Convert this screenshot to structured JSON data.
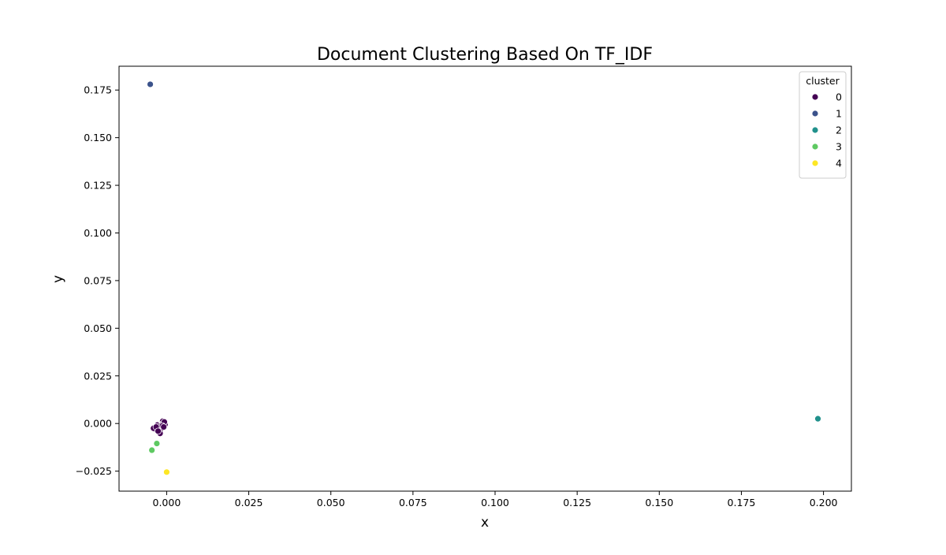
{
  "chart_data": {
    "type": "scatter",
    "title": "Document Clustering Based On TF_IDF",
    "xlabel": "x",
    "ylabel": "y",
    "xlim": [
      -0.0145,
      0.2085
    ],
    "ylim": [
      -0.0355,
      0.1875
    ],
    "x_ticks": [
      0.0,
      0.025,
      0.05,
      0.075,
      0.1,
      0.125,
      0.15,
      0.175,
      0.2
    ],
    "x_tick_labels": [
      "0.000",
      "0.025",
      "0.050",
      "0.075",
      "0.100",
      "0.125",
      "0.150",
      "0.175",
      "0.200"
    ],
    "y_ticks": [
      -0.025,
      0.0,
      0.025,
      0.05,
      0.075,
      0.1,
      0.125,
      0.15,
      0.175
    ],
    "y_tick_labels": [
      "−0.025",
      "0.000",
      "0.025",
      "0.050",
      "0.075",
      "0.100",
      "0.125",
      "0.150",
      "0.175"
    ],
    "grid": false,
    "legend": {
      "title": "cluster",
      "position": "top-right",
      "entries": [
        {
          "label": "0",
          "color": "#440154"
        },
        {
          "label": "1",
          "color": "#3b528b"
        },
        {
          "label": "2",
          "color": "#21918c"
        },
        {
          "label": "3",
          "color": "#5ec962"
        },
        {
          "label": "4",
          "color": "#fde725"
        }
      ]
    },
    "series": [
      {
        "cluster": "0",
        "color": "#440154",
        "points": [
          [
            -0.001,
            0.0005
          ],
          [
            -0.0012,
            0.0012
          ],
          [
            -0.0008,
            0.0002
          ],
          [
            -0.0015,
            -0.0005
          ],
          [
            -0.002,
            -0.001
          ],
          [
            -0.0025,
            -0.002
          ],
          [
            -0.003,
            -0.0025
          ],
          [
            -0.0035,
            -0.003
          ],
          [
            -0.004,
            -0.0025
          ],
          [
            -0.0028,
            -0.0008
          ],
          [
            -0.0022,
            -0.0015
          ],
          [
            -0.0018,
            -0.003
          ],
          [
            -0.0015,
            -0.0025
          ],
          [
            -0.0005,
            -0.0005
          ],
          [
            -0.0007,
            0.0008
          ],
          [
            -0.0013,
            -0.0012
          ],
          [
            -0.0032,
            -0.0018
          ],
          [
            -0.002,
            -0.0052
          ],
          [
            -0.0026,
            -0.004
          ],
          [
            -0.0009,
            -0.0018
          ]
        ]
      },
      {
        "cluster": "1",
        "color": "#3b528b",
        "points": [
          [
            -0.005,
            0.178
          ]
        ]
      },
      {
        "cluster": "2",
        "color": "#21918c",
        "points": [
          [
            0.1983,
            0.0025
          ]
        ]
      },
      {
        "cluster": "3",
        "color": "#5ec962",
        "points": [
          [
            -0.0045,
            -0.014
          ],
          [
            -0.003,
            -0.0105
          ]
        ]
      },
      {
        "cluster": "4",
        "color": "#fde725",
        "points": [
          [
            0.0,
            -0.0255
          ]
        ]
      }
    ]
  }
}
